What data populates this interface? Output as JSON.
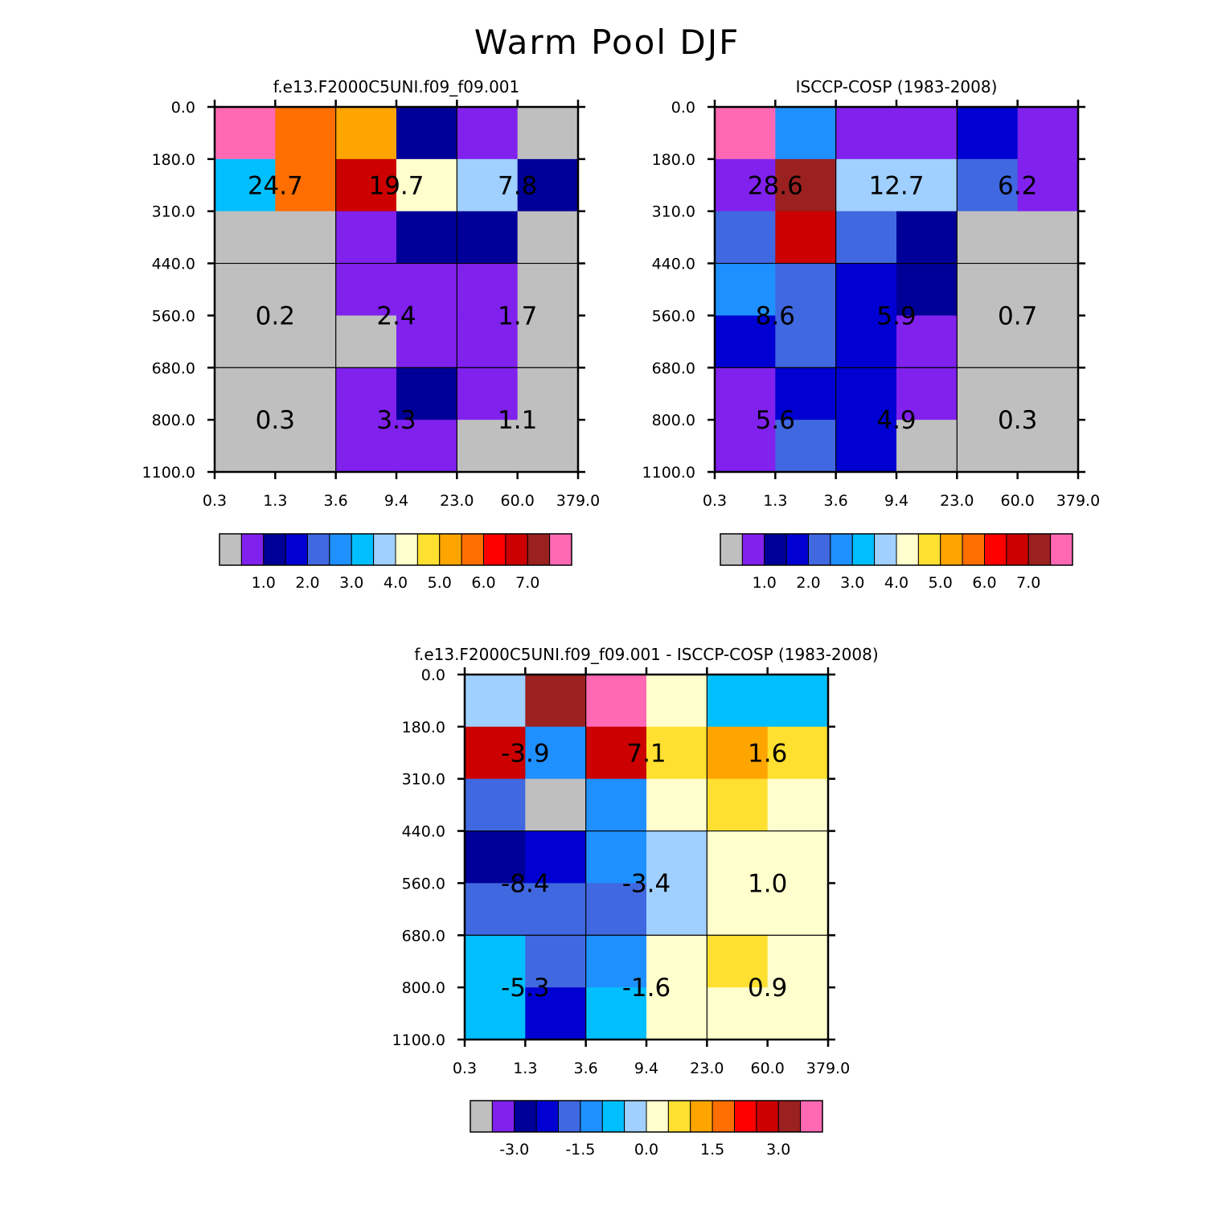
{
  "figure_title": "Warm Pool DJF",
  "colors": {
    "model_scale": [
      "#bfbfbf",
      "#8021ee",
      "#000098",
      "#0000d2",
      "#4068e0",
      "#1e90ff",
      "#00bfff",
      "#a0d0ff",
      "#ffffcd",
      "#ffe030",
      "#ffa500",
      "#ff6e00",
      "#ff0000",
      "#cc0000",
      "#9b2020",
      "#ff69b4"
    ],
    "diff_scale": [
      "#bfbfbf",
      "#8021ee",
      "#000098",
      "#0000d2",
      "#4068e0",
      "#1e90ff",
      "#00bfff",
      "#a0d0ff",
      "#ffffcd",
      "#ffe030",
      "#ffa500",
      "#ff6e00",
      "#ff0000",
      "#cc0000",
      "#9b2020",
      "#ff69b4"
    ]
  },
  "chart_data": [
    {
      "type": "heatmap",
      "title": "f.e13.F2000C5UNI.f09_f09.001",
      "x_ticks": [
        "0.3",
        "1.3",
        "3.6",
        "9.4",
        "23.0",
        "60.0",
        "379.0"
      ],
      "y_ticks": [
        "0.0",
        "180.0",
        "310.0",
        "440.0",
        "560.0",
        "680.0",
        "800.0",
        "1100.0"
      ],
      "color_index": [
        [
          15,
          11,
          10,
          2,
          1,
          0
        ],
        [
          6,
          11,
          13,
          8,
          7,
          2
        ],
        [
          0,
          0,
          1,
          2,
          2,
          0
        ],
        [
          0,
          0,
          1,
          1,
          1,
          0
        ],
        [
          0,
          0,
          0,
          1,
          1,
          0
        ],
        [
          0,
          0,
          1,
          2,
          1,
          0
        ],
        [
          0,
          0,
          1,
          1,
          0,
          0
        ]
      ],
      "group_values": [
        "24.7",
        "19.7",
        "7.8",
        "0.2",
        "2.4",
        "1.7",
        "0.3",
        "3.3",
        "1.1"
      ],
      "colorbar_labels": [
        "1.0",
        "2.0",
        "3.0",
        "4.0",
        "5.0",
        "6.0",
        "7.0"
      ]
    },
    {
      "type": "heatmap",
      "title": "ISCCP-COSP (1983-2008)",
      "x_ticks": [
        "0.3",
        "1.3",
        "3.6",
        "9.4",
        "23.0",
        "60.0",
        "379.0"
      ],
      "y_ticks": [
        "0.0",
        "180.0",
        "310.0",
        "440.0",
        "560.0",
        "680.0",
        "800.0",
        "1100.0"
      ],
      "color_index": [
        [
          15,
          5,
          1,
          1,
          3,
          1
        ],
        [
          1,
          14,
          7,
          7,
          4,
          1
        ],
        [
          4,
          13,
          4,
          2,
          0,
          0
        ],
        [
          5,
          4,
          3,
          2,
          0,
          0
        ],
        [
          3,
          4,
          3,
          1,
          0,
          0
        ],
        [
          1,
          3,
          3,
          1,
          0,
          0
        ],
        [
          1,
          4,
          3,
          0,
          0,
          0
        ]
      ],
      "group_values": [
        "28.6",
        "12.7",
        "6.2",
        "8.6",
        "5.9",
        "0.7",
        "5.6",
        "4.9",
        "0.3"
      ],
      "colorbar_labels": [
        "1.0",
        "2.0",
        "3.0",
        "4.0",
        "5.0",
        "6.0",
        "7.0"
      ]
    },
    {
      "type": "heatmap",
      "title": "f.e13.F2000C5UNI.f09_f09.001 - ISCCP-COSP (1983-2008)",
      "x_ticks": [
        "0.3",
        "1.3",
        "3.6",
        "9.4",
        "23.0",
        "60.0",
        "379.0"
      ],
      "y_ticks": [
        "0.0",
        "180.0",
        "310.0",
        "440.0",
        "560.0",
        "680.0",
        "800.0",
        "1100.0"
      ],
      "color_index": [
        [
          7,
          14,
          15,
          8,
          6,
          6
        ],
        [
          13,
          5,
          13,
          9,
          10,
          9
        ],
        [
          4,
          0,
          5,
          8,
          9,
          8
        ],
        [
          2,
          3,
          5,
          7,
          8,
          8
        ],
        [
          4,
          4,
          4,
          7,
          8,
          8
        ],
        [
          6,
          4,
          5,
          8,
          9,
          8
        ],
        [
          6,
          3,
          6,
          8,
          8,
          8
        ]
      ],
      "group_values": [
        "-3.9",
        "7.1",
        "1.6",
        "-8.4",
        "-3.4",
        "1.0",
        "-5.3",
        "-1.6",
        "0.9"
      ],
      "colorbar_labels": [
        "-3.0",
        "-1.5",
        "0.0",
        "1.5",
        "3.0"
      ]
    }
  ]
}
